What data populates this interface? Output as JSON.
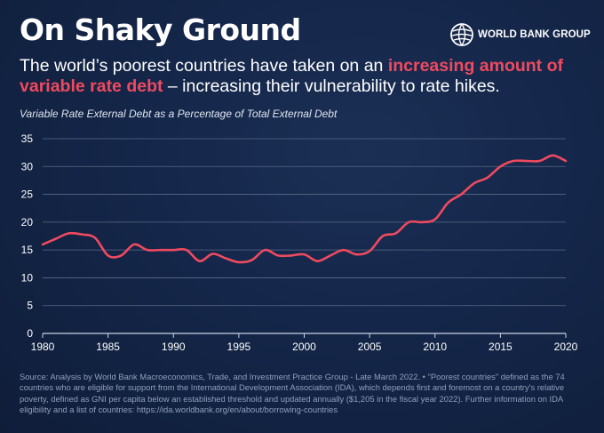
{
  "header": {
    "title": "On Shaky Ground",
    "logo_text": "WORLD BANK GROUP",
    "logo_icon": "globe-icon",
    "subtitle_pre": "The world’s poorest countries have taken on an ",
    "subtitle_highlight": "increasing amount of variable rate debt",
    "subtitle_post": " – increasing their vulnerability to rate hikes."
  },
  "colors": {
    "background": "#132343",
    "highlight": "#ef4a5f",
    "line": "#ef4a5f",
    "grid": "#5a6a88"
  },
  "chart_data": {
    "type": "line",
    "title": "Variable Rate External Debt as a Percentage of Total External Debt",
    "xlabel": "",
    "ylabel": "",
    "xlim": [
      1980,
      2020
    ],
    "ylim": [
      0,
      35
    ],
    "x_ticks": [
      "1980",
      "1985",
      "1990",
      "1995",
      "2000",
      "2005",
      "2010",
      "2015",
      "2020"
    ],
    "y_ticks": [
      "0",
      "5",
      "10",
      "15",
      "20",
      "25",
      "30",
      "35"
    ],
    "grid": true,
    "legend": "none",
    "series": [
      {
        "x": [
          1980,
          1981,
          1982,
          1983,
          1984,
          1985,
          1986,
          1987,
          1988,
          1989,
          1990,
          1991,
          1992,
          1993,
          1994,
          1995,
          1996,
          1997,
          1998,
          1999,
          2000,
          2001,
          2002,
          2003,
          2004,
          2005,
          2006,
          2007,
          2008,
          2009,
          2010,
          2011,
          2012,
          2013,
          2014,
          2015,
          2016,
          2017,
          2018,
          2019,
          2020
        ],
        "values": [
          16.0,
          17.0,
          18.0,
          17.8,
          17.2,
          14.0,
          14.0,
          16.0,
          15.0,
          15.0,
          15.0,
          15.0,
          13.0,
          14.3,
          13.5,
          12.8,
          13.2,
          15.0,
          14.0,
          14.0,
          14.2,
          13.0,
          14.0,
          15.0,
          14.2,
          14.8,
          17.5,
          18.0,
          20.0,
          20.0,
          20.5,
          23.5,
          25.0,
          27.0,
          28.0,
          30.0,
          31.0,
          31.0,
          31.0,
          32.0,
          31.0
        ]
      }
    ]
  },
  "source": "Source: Analysis by World Bank Macroeconomics, Trade, and Investment Practice Group - Late March 2022. • \"Poorest countries\" defined as the 74 countries who are eligible for support from the International Development Association (IDA), which depends first and foremost on a country's relative poverty, defined as GNI per capita below an established threshold and updated annually ($1,205 in the fiscal year 2022). Further information on IDA eligibility and a list of countries: https://ida.worldbank.org/en/about/borrowing-countries"
}
